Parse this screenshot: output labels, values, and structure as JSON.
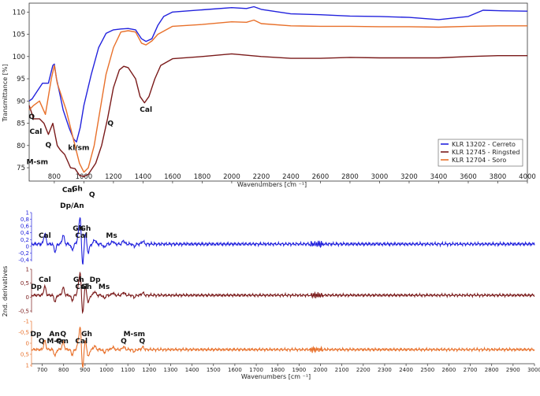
{
  "colors": {
    "cerreto": "#2222dd",
    "ringsted": "#7a1a1a",
    "soro": "#e8702a"
  },
  "chart_data": [
    {
      "type": "line",
      "xlabel": "Wavenumbers [cm ⁻¹]",
      "ylabel": "Transmittance [%]",
      "xlim": [
        630,
        4000
      ],
      "ylim": [
        72,
        112
      ],
      "x_ticks": [
        "800",
        "1000",
        "1200",
        "1400",
        "1600",
        "1800",
        "2000",
        "2200",
        "2400",
        "2600",
        "2800",
        "3000",
        "3200",
        "3400",
        "3600",
        "3800",
        "4000"
      ],
      "y_ticks": [
        "75",
        "80",
        "85",
        "90",
        "95",
        "100",
        "105",
        "110"
      ],
      "legend_position": "bottom-right",
      "series": [
        {
          "name": "KLR 13202 - Cerreto",
          "color": "#2222dd",
          "points": [
            [
              630,
              90
            ],
            [
              650,
              90.5
            ],
            [
              680,
              92
            ],
            [
              720,
              94
            ],
            [
              760,
              94
            ],
            [
              790,
              98
            ],
            [
              800,
              98.3
            ],
            [
              815,
              95
            ],
            [
              835,
              92
            ],
            [
              860,
              88
            ],
            [
              900,
              84
            ],
            [
              930,
              81.5
            ],
            [
              950,
              80.8
            ],
            [
              975,
              84
            ],
            [
              1000,
              89
            ],
            [
              1050,
              96
            ],
            [
              1100,
              102
            ],
            [
              1150,
              105.2
            ],
            [
              1200,
              106
            ],
            [
              1250,
              106.2
            ],
            [
              1300,
              106.3
            ],
            [
              1350,
              106
            ],
            [
              1390,
              104
            ],
            [
              1420,
              103.4
            ],
            [
              1460,
              104
            ],
            [
              1500,
              107
            ],
            [
              1540,
              109
            ],
            [
              1600,
              110
            ],
            [
              1800,
              110.5
            ],
            [
              2000,
              111
            ],
            [
              2100,
              110.8
            ],
            [
              2150,
              111.2
            ],
            [
              2200,
              110.6
            ],
            [
              2400,
              109.6
            ],
            [
              2600,
              109.4
            ],
            [
              2800,
              109.1
            ],
            [
              3000,
              109
            ],
            [
              3200,
              108.8
            ],
            [
              3400,
              108.3
            ],
            [
              3600,
              109
            ],
            [
              3700,
              110.4
            ],
            [
              3800,
              110.3
            ],
            [
              4000,
              110.2
            ]
          ]
        },
        {
          "name": "KLR 12745 - Ringsted",
          "color": "#7a1a1a",
          "points": [
            [
              630,
              89
            ],
            [
              660,
              86
            ],
            [
              700,
              86
            ],
            [
              730,
              85
            ],
            [
              760,
              82.5
            ],
            [
              790,
              85
            ],
            [
              820,
              80
            ],
            [
              840,
              79
            ],
            [
              870,
              78
            ],
            [
              890,
              76.5
            ],
            [
              910,
              75
            ],
            [
              940,
              74.8
            ],
            [
              970,
              73.3
            ],
            [
              1000,
              73
            ],
            [
              1030,
              73.5
            ],
            [
              1080,
              76
            ],
            [
              1120,
              80
            ],
            [
              1160,
              86
            ],
            [
              1200,
              93
            ],
            [
              1240,
              97
            ],
            [
              1270,
              97.8
            ],
            [
              1300,
              97.5
            ],
            [
              1350,
              95
            ],
            [
              1380,
              91
            ],
            [
              1410,
              89.6
            ],
            [
              1440,
              91
            ],
            [
              1480,
              95
            ],
            [
              1520,
              98
            ],
            [
              1600,
              99.5
            ],
            [
              1800,
              100
            ],
            [
              2000,
              100.6
            ],
            [
              2200,
              100
            ],
            [
              2400,
              99.6
            ],
            [
              2600,
              99.6
            ],
            [
              2800,
              99.8
            ],
            [
              3000,
              99.7
            ],
            [
              3200,
              99.7
            ],
            [
              3400,
              99.7
            ],
            [
              3600,
              100
            ],
            [
              3800,
              100.2
            ],
            [
              4000,
              100.2
            ]
          ]
        },
        {
          "name": "KLR 12704 - Soro",
          "color": "#e8702a",
          "points": [
            [
              630,
              88
            ],
            [
              660,
              89
            ],
            [
              700,
              90
            ],
            [
              740,
              87
            ],
            [
              780,
              95
            ],
            [
              800,
              98
            ],
            [
              820,
              94
            ],
            [
              850,
              91
            ],
            [
              880,
              88
            ],
            [
              910,
              84
            ],
            [
              940,
              80
            ],
            [
              970,
              76
            ],
            [
              1000,
              74
            ],
            [
              1030,
              75
            ],
            [
              1070,
              80
            ],
            [
              1100,
              86
            ],
            [
              1150,
              96
            ],
            [
              1200,
              102
            ],
            [
              1250,
              105.5
            ],
            [
              1300,
              105.8
            ],
            [
              1350,
              105.5
            ],
            [
              1390,
              103
            ],
            [
              1420,
              102.6
            ],
            [
              1460,
              103.5
            ],
            [
              1500,
              105
            ],
            [
              1600,
              106.8
            ],
            [
              1800,
              107.2
            ],
            [
              2000,
              107.8
            ],
            [
              2100,
              107.7
            ],
            [
              2150,
              108.2
            ],
            [
              2200,
              107.4
            ],
            [
              2400,
              106.9
            ],
            [
              2600,
              106.8
            ],
            [
              2800,
              106.8
            ],
            [
              3000,
              106.7
            ],
            [
              3200,
              106.7
            ],
            [
              3400,
              106.6
            ],
            [
              3600,
              106.8
            ],
            [
              3800,
              106.9
            ],
            [
              4000,
              106.9
            ]
          ]
        }
      ],
      "annotations": [
        {
          "text": "Q",
          "x": 647,
          "y": 86
        },
        {
          "text": "Cal",
          "x": 675,
          "y": 82.6
        },
        {
          "text": "Q",
          "x": 760,
          "y": 79.6
        },
        {
          "text": "M-sm",
          "x": 685,
          "y": 75.8
        },
        {
          "text": "Cal",
          "x": 895,
          "y": 69.5
        },
        {
          "text": "Gh",
          "x": 955,
          "y": 69.8
        },
        {
          "text": "Dp/An",
          "x": 920,
          "y": 66
        },
        {
          "text": "Q",
          "x": 1055,
          "y": 68.5
        },
        {
          "text": "kl/sm",
          "x": 965,
          "y": 79
        },
        {
          "text": "Q",
          "x": 1180,
          "y": 84.5
        },
        {
          "text": "Cal",
          "x": 1420,
          "y": 87.6
        }
      ]
    },
    {
      "type": "line",
      "xlabel": "Wavenumbers [cm ⁻¹]",
      "ylabel": "2nd. derivatives",
      "xlim": [
        650,
        3000
      ],
      "x_ticks": [
        "700",
        "800",
        "900",
        "1000",
        "1100",
        "1200",
        "1300",
        "1400",
        "1500",
        "1600",
        "1700",
        "1800",
        "1900",
        "2000",
        "2100",
        "2200",
        "2300",
        "2400",
        "2500",
        "2600",
        "2700",
        "2800",
        "2900",
        "3000"
      ],
      "series": [
        {
          "name": "",
          "color": "#2222dd",
          "y_ticks": [
            "1",
            "0,8",
            "0,6",
            "0,4",
            "0,2",
            "0",
            "-0,2",
            "-0,4"
          ],
          "annotations": [
            {
              "text": "Cal",
              "x": 712
            },
            {
              "text": "Gh",
              "x": 868
            },
            {
              "text": "Cal",
              "x": 883
            },
            {
              "text": "Gh",
              "x": 902
            },
            {
              "text": "Ms",
              "x": 1024
            }
          ]
        },
        {
          "name": "",
          "color": "#7a1a1a",
          "y_ticks": [
            "1",
            "0,5",
            "0",
            "-0,5"
          ],
          "annotations": [
            {
              "text": "Dp",
              "x": 672
            },
            {
              "text": "Cal",
              "x": 712
            },
            {
              "text": "Cal",
              "x": 883
            },
            {
              "text": "Gh",
              "x": 870
            },
            {
              "text": "Gh",
              "x": 906
            },
            {
              "text": "Dp",
              "x": 947
            },
            {
              "text": "Ms",
              "x": 989
            }
          ]
        },
        {
          "name": "",
          "color": "#e8702a",
          "y_ticks": [
            "-1",
            "-0,5",
            "0",
            "0,5",
            "1"
          ],
          "annotations": [
            {
              "text": "Q",
              "x": 697
            },
            {
              "text": "Dp",
              "x": 670
            },
            {
              "text": "Q",
              "x": 778
            },
            {
              "text": "Q",
              "x": 798
            },
            {
              "text": "M-sm",
              "x": 772
            },
            {
              "text": "An",
              "x": 757
            },
            {
              "text": "Cal",
              "x": 883
            },
            {
              "text": "Gh",
              "x": 908
            },
            {
              "text": "Q",
              "x": 1081
            },
            {
              "text": "M-sm",
              "x": 1130
            },
            {
              "text": "Q",
              "x": 1167
            }
          ]
        }
      ]
    }
  ]
}
